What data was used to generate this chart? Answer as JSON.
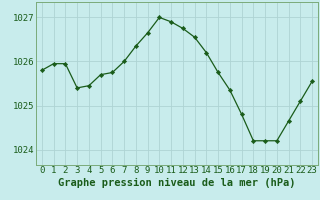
{
  "x": [
    0,
    1,
    2,
    3,
    4,
    5,
    6,
    7,
    8,
    9,
    10,
    11,
    12,
    13,
    14,
    15,
    16,
    17,
    18,
    19,
    20,
    21,
    22,
    23
  ],
  "y": [
    1025.8,
    1025.95,
    1025.95,
    1025.4,
    1025.45,
    1025.7,
    1025.75,
    1026.0,
    1026.35,
    1026.65,
    1027.0,
    1026.9,
    1026.75,
    1026.55,
    1026.2,
    1025.75,
    1025.35,
    1024.8,
    1024.2,
    1024.2,
    1024.2,
    1024.65,
    1025.1,
    1025.55
  ],
  "line_color": "#1a5c1a",
  "marker": "D",
  "marker_size": 2.2,
  "background_color": "#c8ecec",
  "grid_color": "#aed4d4",
  "xlabel": "Graphe pression niveau de la mer (hPa)",
  "yticks": [
    1024,
    1025,
    1026,
    1027
  ],
  "ylim": [
    1023.65,
    1027.35
  ],
  "xlim": [
    -0.5,
    23.5
  ],
  "xtick_labels": [
    "0",
    "1",
    "2",
    "3",
    "4",
    "5",
    "6",
    "7",
    "8",
    "9",
    "10",
    "11",
    "12",
    "13",
    "14",
    "15",
    "16",
    "17",
    "18",
    "19",
    "20",
    "21",
    "22",
    "23"
  ],
  "xlabel_fontsize": 7.5,
  "tick_fontsize": 6.5,
  "label_color": "#1a5c1a",
  "spine_color": "#7aaa7a"
}
